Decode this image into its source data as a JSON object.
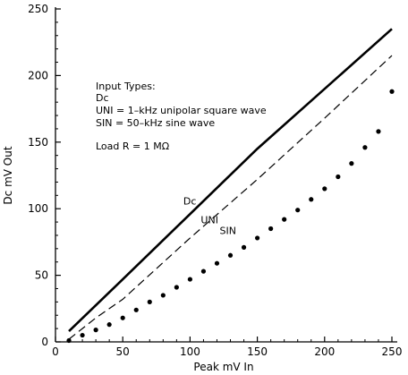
{
  "chart_data": {
    "type": "line",
    "title": "",
    "xlabel": "Peak mV In",
    "ylabel": "Dc mV Out",
    "xlim": [
      0,
      250
    ],
    "ylim": [
      0,
      250
    ],
    "xticks": [
      0,
      50,
      100,
      150,
      200,
      250
    ],
    "yticks": [
      0,
      50,
      100,
      150,
      200,
      250
    ],
    "grid": false,
    "legend_block": {
      "heading": "Input Types:",
      "lines": [
        "Dc",
        "UNI = 1–kHz unipolar square wave",
        "SIN = 50–kHz sine wave"
      ],
      "note": "Load R = 1 MΩ"
    },
    "series": [
      {
        "name": "Dc",
        "style": "solid-thick",
        "x": [
          10,
          50,
          100,
          150,
          180,
          250
        ],
        "y": [
          8,
          47,
          96,
          145,
          172,
          235
        ]
      },
      {
        "name": "UNI",
        "style": "dashed",
        "x": [
          10,
          20,
          30,
          50,
          100,
          150,
          200,
          250
        ],
        "y": [
          2,
          10,
          18,
          32,
          78,
          122,
          168,
          215
        ]
      },
      {
        "name": "SIN",
        "style": "dotted",
        "x": [
          10,
          20,
          30,
          40,
          50,
          60,
          70,
          80,
          90,
          100,
          110,
          120,
          130,
          140,
          150,
          160,
          170,
          180,
          190,
          200,
          210,
          220,
          230,
          240,
          250
        ],
        "y": [
          1,
          5,
          9,
          13,
          18,
          24,
          30,
          35,
          41,
          47,
          53,
          59,
          65,
          71,
          78,
          85,
          92,
          99,
          107,
          115,
          124,
          134,
          146,
          158,
          188
        ]
      }
    ],
    "curve_labels": [
      {
        "text": "Dc",
        "x": 95,
        "y": 103
      },
      {
        "text": "UNI",
        "x": 108,
        "y": 89
      },
      {
        "text": "SIN",
        "x": 122,
        "y": 81
      }
    ]
  }
}
